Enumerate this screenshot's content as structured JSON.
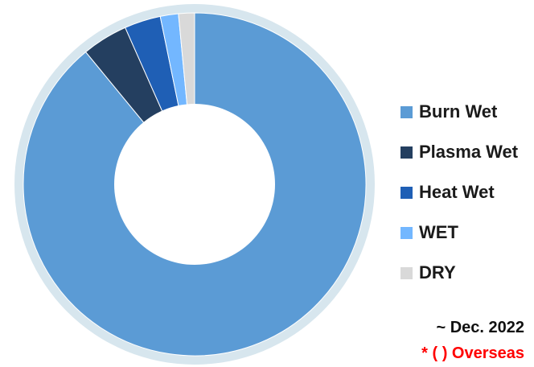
{
  "chart_data": {
    "type": "pie",
    "style": "donut",
    "categories": [
      "Burn Wet",
      "Plasma Wet",
      "Heat Wet",
      "WET",
      "DRY"
    ],
    "values": [
      88.5,
      4.3,
      3.4,
      1.7,
      1.5
    ],
    "unit": "%",
    "colors": [
      "#5b9bd5",
      "#243f60",
      "#1f5fb5",
      "#73b7ff",
      "#d9d9d9"
    ],
    "outer_ring_color": "#d7e6ee",
    "start": "12 o'clock, clockwise",
    "legend_position": "right"
  },
  "notes": {
    "date": "~ Dec. 2022",
    "overseas": "* ( ) Overseas",
    "overseas_color": "#ff0000"
  }
}
